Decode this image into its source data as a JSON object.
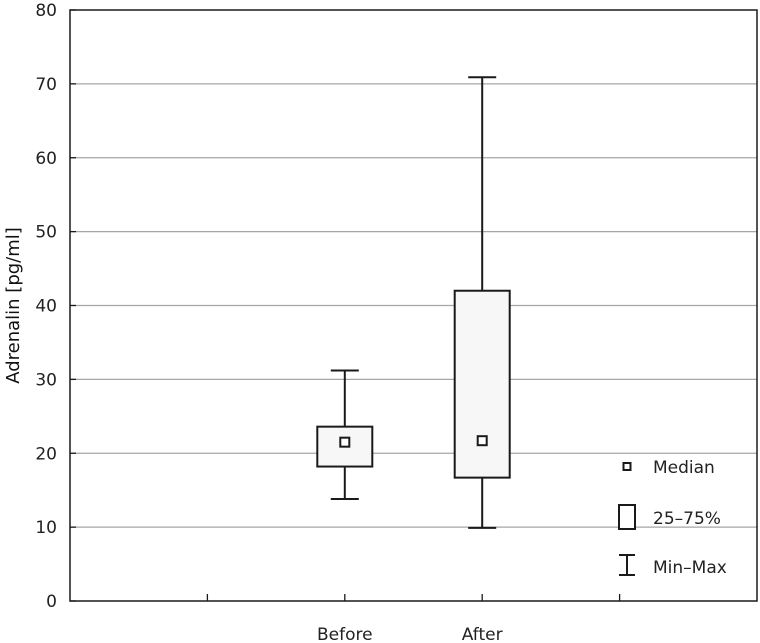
{
  "chart_data": {
    "type": "box",
    "ylabel": "Adrenalin [pg/ml]",
    "xlabel": "",
    "ylim": [
      0,
      80
    ],
    "yticks": [
      0,
      10,
      20,
      30,
      40,
      50,
      60,
      70,
      80
    ],
    "categories": [
      "Before",
      "After"
    ],
    "boxes": [
      {
        "category": "Before",
        "min": 13.8,
        "q1": 18.2,
        "median": 21.5,
        "q3": 23.6,
        "max": 31.2
      },
      {
        "category": "After",
        "min": 9.9,
        "q1": 16.7,
        "median": 21.7,
        "q3": 42.0,
        "max": 70.9
      }
    ],
    "grid": true,
    "legend_position": "bottom-right",
    "legend": [
      {
        "symbol": "median-square",
        "label": "Median"
      },
      {
        "symbol": "box",
        "label": "25–75%"
      },
      {
        "symbol": "whisker",
        "label": "Min–Max"
      }
    ],
    "colors": {
      "grid": "#a6a6a6",
      "box_fill": "#f7f7f7",
      "stroke": "#1a1a1a"
    }
  }
}
